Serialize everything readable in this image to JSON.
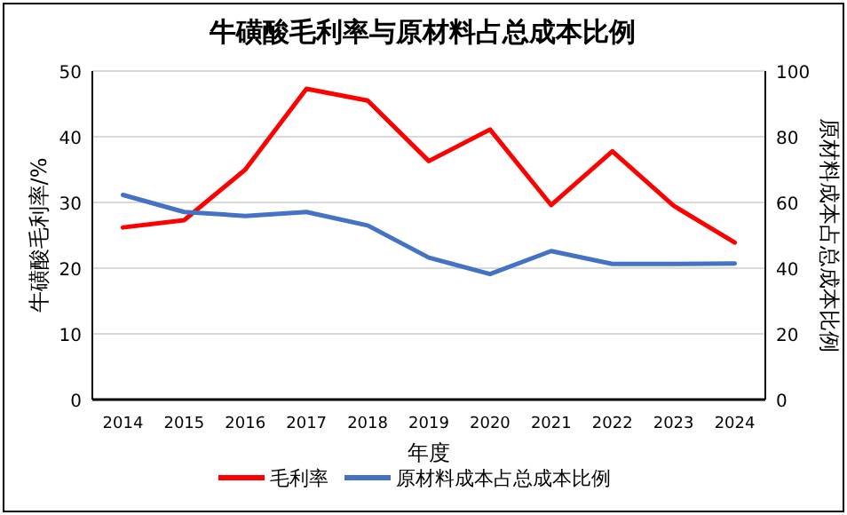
{
  "chart_data": {
    "type": "line",
    "title": "牛磺酸毛利率与原材料占总成本比例",
    "xlabel": "年度",
    "ylabel": "牛磺酸毛利率/%",
    "y2label": "原材料成本占总成本比例",
    "categories": [
      "2014",
      "2015",
      "2016",
      "2017",
      "2018",
      "2019",
      "2020",
      "2021",
      "2022",
      "2023",
      "2024"
    ],
    "series": [
      {
        "name": "毛利率",
        "color": "#ff0000",
        "values": [
          26.2,
          27.3,
          35.0,
          47.3,
          45.5,
          36.3,
          41.1,
          29.6,
          37.8,
          29.5,
          23.9
        ]
      },
      {
        "name": "原材料成本占总成本比例",
        "color": "#4472c4",
        "axis": "y2",
        "values": [
          62.3,
          57.1,
          55.9,
          57.1,
          53.0,
          43.2,
          38.2,
          45.2,
          41.3,
          41.3,
          41.4
        ]
      }
    ],
    "ylim": [
      0,
      50
    ],
    "yticks": [
      0,
      10,
      20,
      30,
      40,
      50
    ],
    "y2lim": [
      0,
      100
    ],
    "y2ticks": [
      0,
      20,
      40,
      60,
      80,
      100
    ],
    "grid": "y",
    "legend": "bottom",
    "marker": "none",
    "line_style": "solid"
  }
}
